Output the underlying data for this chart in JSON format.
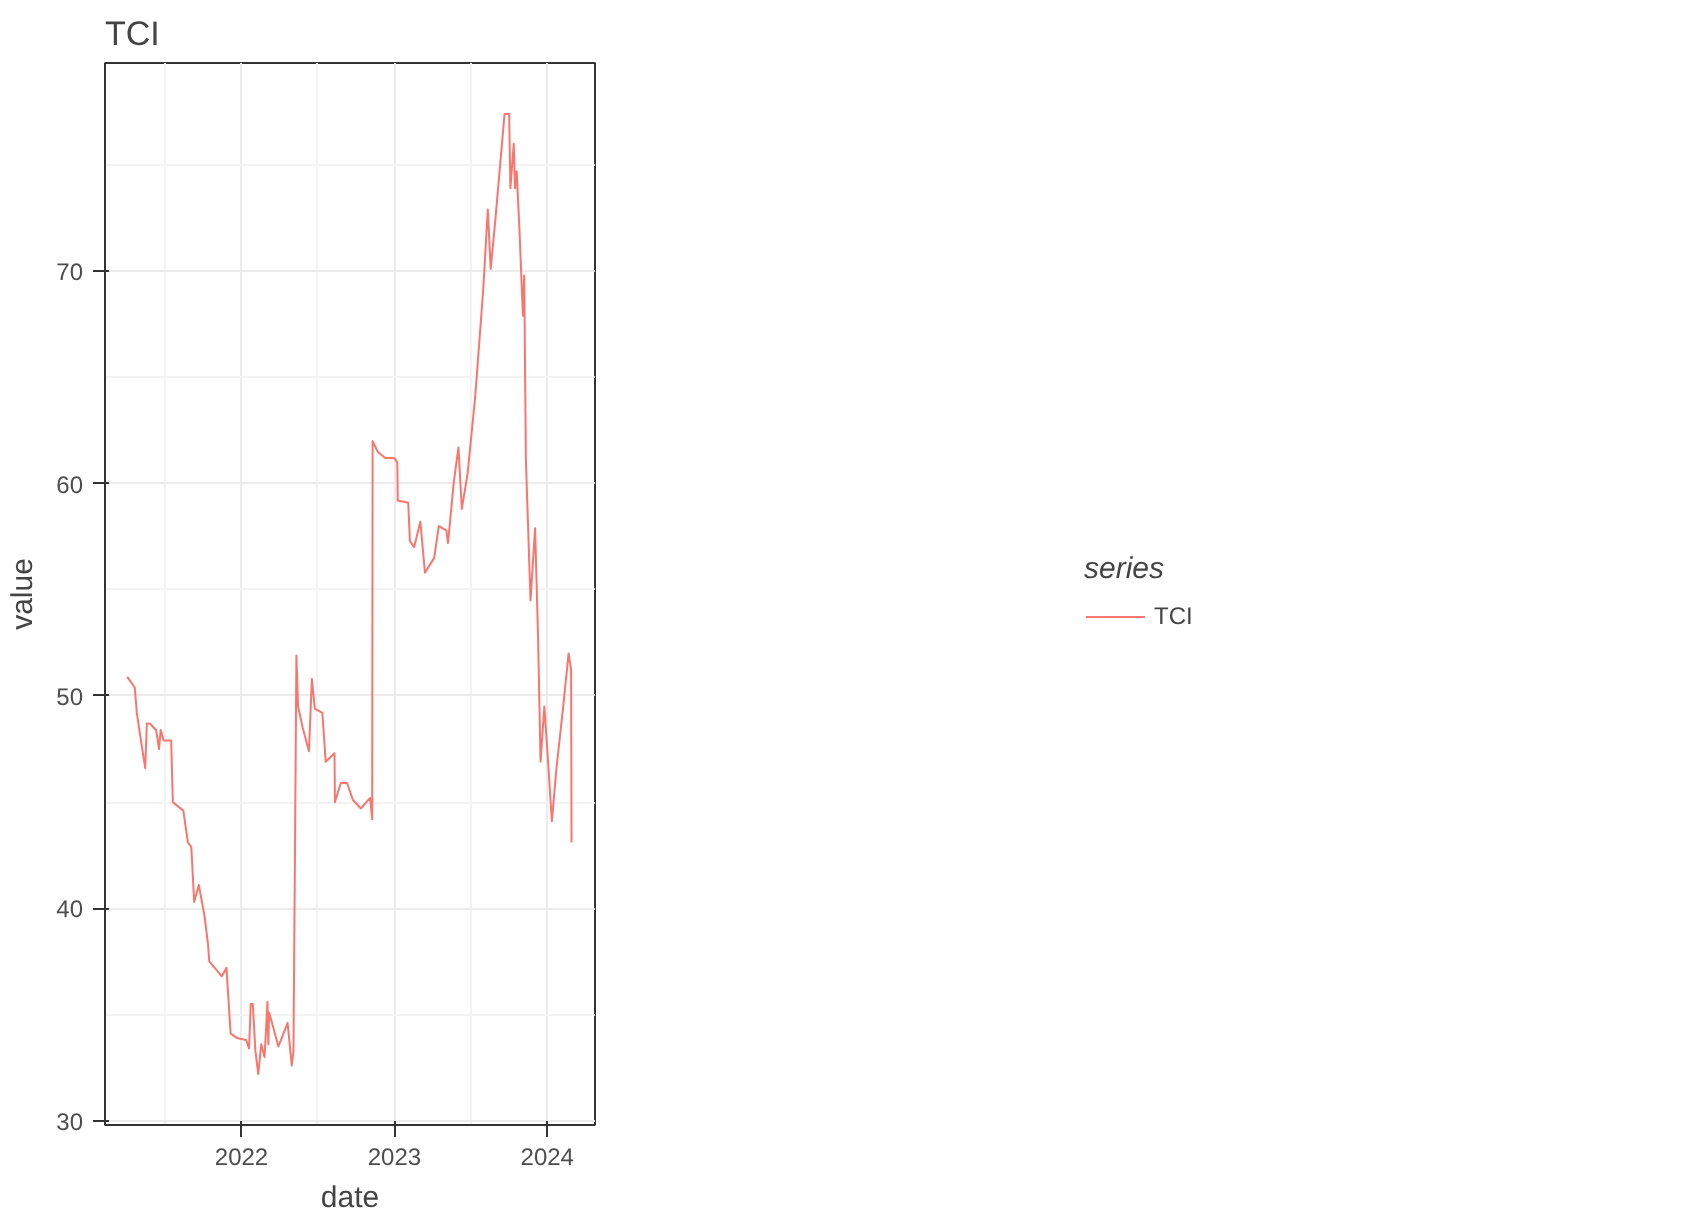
{
  "chart_data": {
    "type": "line",
    "title": "TCI",
    "xlabel": "date",
    "ylabel": "value",
    "legend_title": "series",
    "x": [
      "2021-04-03",
      "2021-04-21",
      "2021-04-26",
      "2021-05-05",
      "2021-05-16",
      "2021-05-20",
      "2021-05-27",
      "2021-06-11",
      "2021-06-18",
      "2021-06-22",
      "2021-06-29",
      "2021-07-17",
      "2021-07-21",
      "2021-08-15",
      "2021-08-26",
      "2021-09-03",
      "2021-09-10",
      "2021-09-21",
      "2021-10-05",
      "2021-10-13",
      "2021-10-16",
      "2021-11-15",
      "2021-11-26",
      "2021-12-06",
      "2021-12-21",
      "2022-01-12",
      "2022-01-19",
      "2022-01-23",
      "2022-01-28",
      "2022-02-03",
      "2022-02-10",
      "2022-02-17",
      "2022-02-25",
      "2022-03-04",
      "2022-03-06",
      "2022-03-08",
      "2022-03-30",
      "2022-04-21",
      "2022-05-01",
      "2022-05-05",
      "2022-05-09",
      "2022-05-12",
      "2022-05-16",
      "2022-05-27",
      "2022-06-11",
      "2022-06-18",
      "2022-06-25",
      "2022-07-13",
      "2022-07-21",
      "2022-08-11",
      "2022-08-12",
      "2022-08-26",
      "2022-09-10",
      "2022-09-24",
      "2022-10-13",
      "2022-11-04",
      "2022-11-09",
      "2022-11-10",
      "2022-11-22",
      "2022-12-10",
      "2023-01-01",
      "2023-01-08",
      "2023-01-09",
      "2023-02-03",
      "2023-02-07",
      "2023-02-17",
      "2023-03-04",
      "2023-03-15",
      "2023-04-06",
      "2023-04-17",
      "2023-05-05",
      "2023-05-09",
      "2023-05-23",
      "2023-06-03",
      "2023-06-11",
      "2023-06-25",
      "2023-07-13",
      "2023-08-01",
      "2023-08-12",
      "2023-08-19",
      "2023-08-30",
      "2023-09-10",
      "2023-09-21",
      "2023-10-02",
      "2023-10-05",
      "2023-10-13",
      "2023-10-16",
      "2023-10-20",
      "2023-10-27",
      "2023-10-31",
      "2023-11-04",
      "2023-11-07",
      "2023-11-11",
      "2023-11-18",
      "2023-11-22",
      "2023-12-03",
      "2023-12-10",
      "2023-12-16",
      "2023-12-25",
      "2024-01-01",
      "2024-01-12",
      "2024-01-23",
      "2024-02-07",
      "2024-02-21",
      "2024-02-27",
      "2024-02-28"
    ],
    "series": [
      {
        "name": "TCI",
        "color": "#f8766d",
        "values": [
          50.9,
          50.4,
          49.2,
          48.0,
          46.6,
          48.7,
          48.7,
          48.4,
          47.5,
          48.4,
          47.9,
          47.9,
          45.0,
          44.6,
          43.1,
          42.9,
          40.3,
          41.1,
          39.6,
          38.3,
          37.5,
          36.8,
          37.2,
          34.1,
          33.9,
          33.8,
          33.4,
          35.5,
          35.5,
          33.3,
          32.2,
          33.6,
          33.0,
          35.6,
          33.6,
          35.1,
          33.5,
          34.6,
          32.6,
          33.3,
          43.7,
          51.9,
          49.5,
          48.5,
          47.4,
          50.8,
          49.4,
          49.2,
          46.9,
          47.3,
          45.0,
          45.9,
          45.9,
          45.1,
          44.7,
          45.2,
          44.2,
          62.0,
          61.5,
          61.2,
          61.2,
          61.0,
          59.2,
          59.1,
          57.3,
          57.0,
          58.2,
          55.8,
          56.5,
          58.0,
          57.8,
          57.2,
          60.1,
          61.7,
          58.8,
          60.5,
          64.1,
          69.1,
          72.9,
          70.1,
          72.4,
          74.9,
          77.4,
          77.4,
          73.9,
          76.0,
          73.9,
          74.7,
          71.8,
          69.8,
          67.9,
          69.8,
          61.1,
          56.9,
          54.5,
          57.9,
          52.8,
          46.9,
          49.5,
          47.5,
          44.1,
          46.6,
          49.3,
          52.0,
          51.2,
          43.1
        ]
      }
    ],
    "xlim": [
      "2021-02-09",
      "2024-04-24"
    ],
    "xticks": [
      {
        "value": "2022-01-01",
        "label": "2022"
      },
      {
        "value": "2023-01-01",
        "label": "2023"
      },
      {
        "value": "2024-01-01",
        "label": "2024"
      }
    ],
    "ylim": [
      29.8,
      79.8
    ],
    "yticks": [
      30,
      40,
      50,
      60,
      70
    ],
    "grid": true,
    "legend": "right"
  }
}
